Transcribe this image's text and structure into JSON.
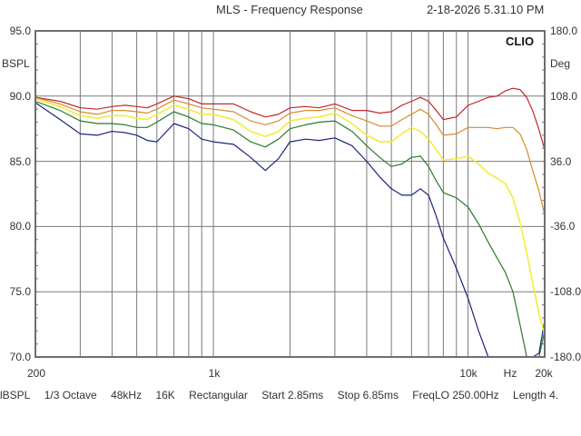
{
  "header": {
    "title": "MLS - Frequency Response",
    "timestamp": "2-18-2026 5.31.10 PM",
    "brand": "CLIO"
  },
  "axes": {
    "left_unit": "dBSPL",
    "left_unit_visible": "BSPL",
    "right_unit": "Deg",
    "x_unit": "Hz",
    "left_ticks": [
      "95.0",
      "90.0",
      "85.0",
      "80.0",
      "75.0",
      "70.0"
    ],
    "right_ticks": [
      "180.0",
      "108.0",
      "36.0",
      "-36.0",
      "-108.0",
      "-180.0"
    ],
    "x_ticks": [
      "200",
      "1k",
      "10k",
      "20k"
    ]
  },
  "footer": {
    "unit": "lBSPL",
    "smoothing": "1/3 Octave",
    "sample_rate": "48kHz",
    "size": "16K",
    "window": "Rectangular",
    "start": "Start 2.85ms",
    "stop": "Stop 6.85ms",
    "freqlo": "FreqLO 250.00Hz",
    "length": "Length 4."
  },
  "chart_data": {
    "type": "line",
    "title": "MLS - Frequency Response",
    "xlabel": "Hz",
    "ylabel": "dBSPL",
    "y2label": "Deg",
    "xscale": "log",
    "xlim": [
      200,
      20000
    ],
    "ylim": [
      70,
      95
    ],
    "y2lim": [
      -180,
      180
    ],
    "grid": true,
    "legend": "none",
    "x": [
      200,
      250,
      300,
      350,
      400,
      450,
      500,
      550,
      600,
      700,
      800,
      900,
      1000,
      1200,
      1400,
      1600,
      1800,
      2000,
      2300,
      2600,
      3000,
      3500,
      4000,
      4500,
      5000,
      5500,
      6000,
      6500,
      7000,
      7500,
      8000,
      9000,
      10000,
      11000,
      12000,
      13000,
      14000,
      15000,
      16000,
      17000,
      18000,
      19000,
      20000
    ],
    "series": [
      {
        "name": "red",
        "color": "#c0282d",
        "values": [
          89.9,
          89.6,
          89.1,
          89.0,
          89.2,
          89.3,
          89.2,
          89.1,
          89.4,
          90.0,
          89.8,
          89.4,
          89.4,
          89.4,
          88.8,
          88.4,
          88.6,
          89.1,
          89.2,
          89.1,
          89.4,
          88.9,
          88.9,
          88.7,
          88.8,
          89.3,
          89.6,
          89.9,
          89.6,
          88.9,
          88.2,
          88.4,
          89.3,
          89.6,
          89.9,
          90.0,
          90.4,
          90.6,
          90.5,
          89.9,
          88.8,
          87.4,
          85.9
        ]
      },
      {
        "name": "orange",
        "color": "#d88a2a",
        "values": [
          89.9,
          89.4,
          88.8,
          88.6,
          88.9,
          88.9,
          88.8,
          88.7,
          89.0,
          89.7,
          89.4,
          89.1,
          89.0,
          88.8,
          88.1,
          87.8,
          88.1,
          88.7,
          88.9,
          88.9,
          89.1,
          88.5,
          88.1,
          87.7,
          87.7,
          88.2,
          88.6,
          89.0,
          88.6,
          87.8,
          87.0,
          87.1,
          87.6,
          87.6,
          87.6,
          87.5,
          87.6,
          87.6,
          87.1,
          85.9,
          84.2,
          82.7,
          80.9
        ]
      },
      {
        "name": "yellow",
        "color": "#f2ec3a",
        "values": [
          89.8,
          89.2,
          88.5,
          88.3,
          88.5,
          88.5,
          88.3,
          88.2,
          88.6,
          89.3,
          89.0,
          88.6,
          88.6,
          88.2,
          87.3,
          86.9,
          87.3,
          88.1,
          88.3,
          88.4,
          88.7,
          87.9,
          87.0,
          86.5,
          86.5,
          87.1,
          87.6,
          87.3,
          86.7,
          85.9,
          85.1,
          85.2,
          85.4,
          84.8,
          84.1,
          83.7,
          83.3,
          82.2,
          80.3,
          78.0,
          75.5,
          73.3,
          71.7
        ]
      },
      {
        "name": "green",
        "color": "#2a7a2a",
        "values": [
          89.6,
          88.9,
          88.1,
          87.9,
          87.9,
          87.8,
          87.6,
          87.6,
          88.0,
          88.8,
          88.4,
          87.9,
          87.8,
          87.4,
          86.5,
          86.1,
          86.7,
          87.5,
          87.8,
          88.0,
          88.1,
          87.3,
          86.2,
          85.3,
          84.6,
          84.8,
          85.3,
          85.4,
          84.6,
          83.5,
          82.6,
          82.2,
          81.5,
          80.2,
          78.8,
          77.6,
          76.5,
          75.0,
          72.5,
          70.0,
          70.0,
          70.0,
          72.0
        ]
      },
      {
        "name": "blue",
        "color": "#1a237e",
        "values": [
          89.5,
          88.2,
          87.1,
          87.0,
          87.3,
          87.2,
          87.0,
          86.6,
          86.5,
          87.9,
          87.5,
          86.7,
          86.5,
          86.3,
          85.3,
          84.3,
          85.2,
          86.5,
          86.7,
          86.6,
          86.8,
          86.2,
          85.0,
          83.8,
          82.9,
          82.4,
          82.4,
          82.9,
          82.4,
          80.8,
          79.1,
          76.8,
          74.5,
          72.0,
          70.0,
          70.0,
          70.0,
          70.0,
          70.0,
          70.0,
          70.0,
          70.3,
          72.8
        ]
      }
    ]
  }
}
